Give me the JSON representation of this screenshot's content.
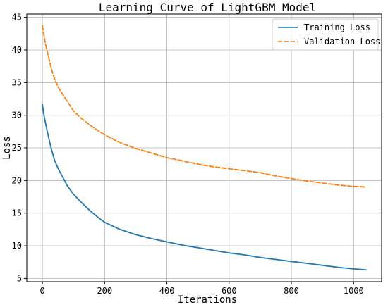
{
  "chart_data": {
    "type": "line",
    "title": "Learning Curve of LightGBM Model",
    "xlabel": "Iterations",
    "ylabel": "Loss",
    "xlim": [
      -50,
      1090
    ],
    "ylim": [
      4.5,
      45.5
    ],
    "xticks": [
      0,
      200,
      400,
      600,
      800,
      1000
    ],
    "yticks": [
      5,
      10,
      15,
      20,
      25,
      30,
      35,
      40,
      45
    ],
    "grid": true,
    "legend_position": "top-right",
    "series": [
      {
        "name": "Training Loss",
        "color": "#1f77b4",
        "style": "solid",
        "x": [
          0,
          5,
          10,
          20,
          30,
          40,
          50,
          60,
          80,
          100,
          120,
          150,
          180,
          200,
          250,
          300,
          350,
          400,
          450,
          500,
          550,
          600,
          650,
          700,
          750,
          800,
          850,
          900,
          950,
          1000,
          1040
        ],
        "y": [
          31.6,
          30.0,
          28.8,
          26.6,
          24.6,
          23.0,
          21.9,
          21.0,
          19.2,
          17.9,
          16.9,
          15.5,
          14.3,
          13.6,
          12.5,
          11.7,
          11.1,
          10.6,
          10.1,
          9.7,
          9.3,
          8.9,
          8.6,
          8.2,
          7.9,
          7.6,
          7.3,
          7.0,
          6.7,
          6.45,
          6.3
        ]
      },
      {
        "name": "Validation Loss",
        "color": "#ff7f0e",
        "style": "dashed",
        "x": [
          0,
          5,
          10,
          20,
          30,
          40,
          50,
          60,
          80,
          100,
          120,
          150,
          180,
          200,
          250,
          300,
          350,
          400,
          450,
          500,
          550,
          600,
          650,
          700,
          750,
          800,
          850,
          900,
          950,
          1000,
          1040
        ],
        "y": [
          43.7,
          42.3,
          40.9,
          38.9,
          36.9,
          35.5,
          34.4,
          33.6,
          32.1,
          30.7,
          29.7,
          28.6,
          27.6,
          27.0,
          25.8,
          24.9,
          24.2,
          23.5,
          23.0,
          22.5,
          22.1,
          21.8,
          21.5,
          21.2,
          20.7,
          20.3,
          19.9,
          19.6,
          19.3,
          19.1,
          19.0
        ]
      }
    ]
  }
}
